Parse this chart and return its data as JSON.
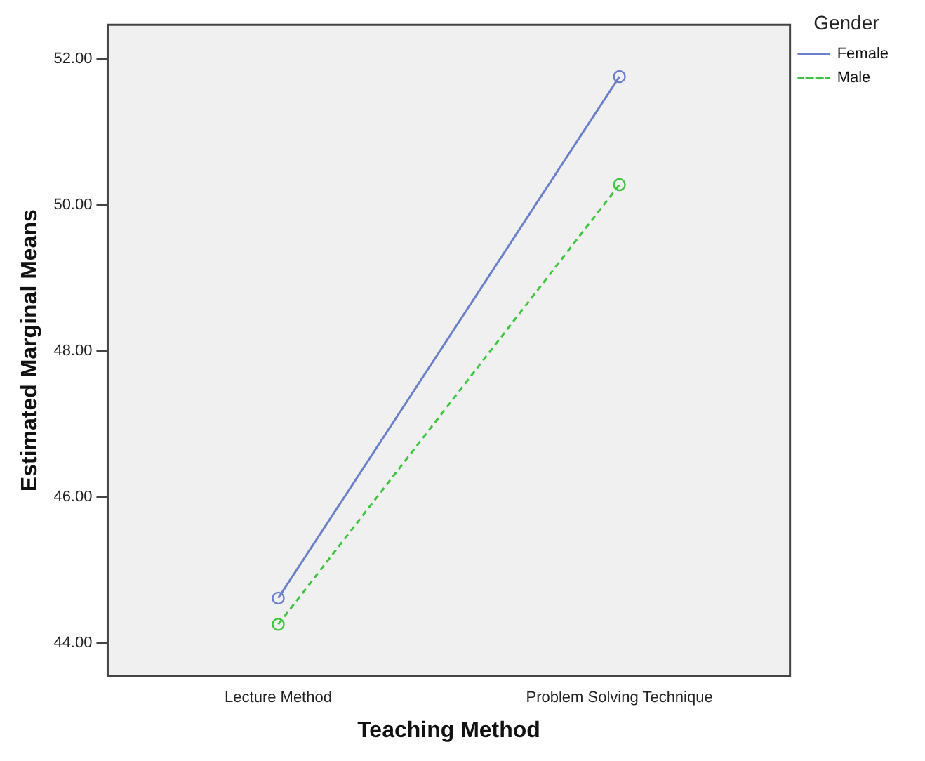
{
  "chart_data": {
    "type": "line",
    "xlabel": "Teaching Method",
    "ylabel": "Estimated Marginal Means",
    "legend_title": "Gender",
    "categories": [
      "Lecture Method",
      "Problem Solving Technique"
    ],
    "series": [
      {
        "name": "Female",
        "color": "#6a7fc9",
        "values": [
          44.62,
          51.76
        ],
        "line_style": "solid"
      },
      {
        "name": "Male",
        "color": "#3ec43e",
        "values": [
          44.26,
          50.28
        ],
        "line_style": "dashed"
      }
    ],
    "ylim": [
      43.55,
      52.47
    ],
    "yticks": [
      {
        "value": 44,
        "label": "44.00"
      },
      {
        "value": 46,
        "label": "46.00"
      },
      {
        "value": 48,
        "label": "48.00"
      },
      {
        "value": 50,
        "label": "50.00"
      },
      {
        "value": 52,
        "label": "52.00"
      }
    ],
    "grid": false,
    "legend": "top right",
    "marker": "circle"
  }
}
